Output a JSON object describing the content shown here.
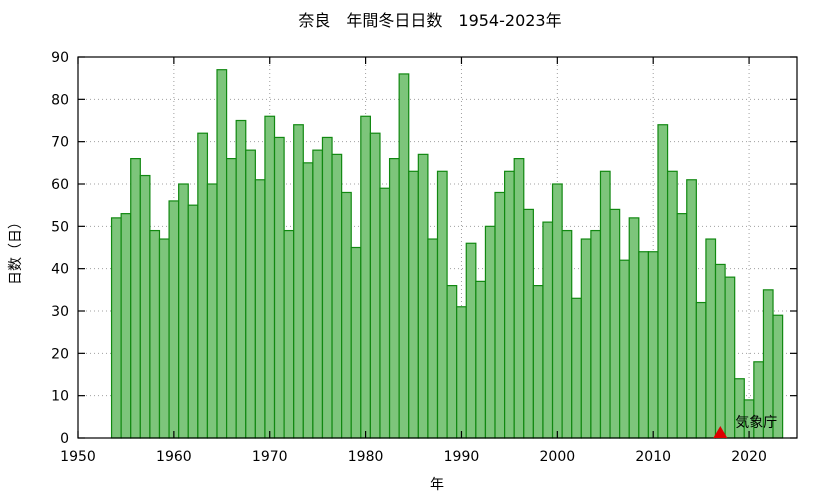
{
  "chart_data": {
    "type": "bar",
    "title": "奈良　年間冬日日数　1954-2023年",
    "xlabel": "年",
    "ylabel": "日数（日）",
    "xlim": [
      1950,
      2025
    ],
    "ylim": [
      0,
      90
    ],
    "xticks": [
      1950,
      1960,
      1970,
      1980,
      1990,
      2000,
      2010,
      2020
    ],
    "yticks": [
      0,
      10,
      20,
      30,
      40,
      50,
      60,
      70,
      80,
      90
    ],
    "grid": true,
    "x": [
      1954,
      1955,
      1956,
      1957,
      1958,
      1959,
      1960,
      1961,
      1962,
      1963,
      1964,
      1965,
      1966,
      1967,
      1968,
      1969,
      1970,
      1971,
      1972,
      1973,
      1974,
      1975,
      1976,
      1977,
      1978,
      1979,
      1980,
      1981,
      1982,
      1983,
      1984,
      1985,
      1986,
      1987,
      1988,
      1989,
      1990,
      1991,
      1992,
      1993,
      1994,
      1995,
      1996,
      1997,
      1998,
      1999,
      2000,
      2001,
      2002,
      2003,
      2004,
      2005,
      2006,
      2007,
      2008,
      2009,
      2010,
      2011,
      2012,
      2013,
      2014,
      2015,
      2016,
      2017,
      2018,
      2019,
      2020,
      2021,
      2022,
      2023
    ],
    "values": [
      52,
      53,
      66,
      62,
      49,
      47,
      56,
      60,
      55,
      72,
      60,
      87,
      66,
      75,
      68,
      61,
      76,
      71,
      49,
      74,
      65,
      68,
      71,
      67,
      58,
      45,
      76,
      72,
      59,
      66,
      86,
      63,
      67,
      47,
      63,
      36,
      31,
      46,
      37,
      50,
      58,
      63,
      66,
      54,
      36,
      51,
      60,
      49,
      33,
      47,
      49,
      63,
      54,
      42,
      52,
      44,
      44,
      74,
      63,
      53,
      61,
      32,
      47,
      41,
      38,
      14,
      9,
      18,
      35,
      29
    ],
    "annotation": {
      "label": "気象庁",
      "marker": "triangle",
      "x": 2017,
      "y": 0,
      "color": "#dd0000"
    },
    "colors": {
      "bar_fill": "#7dc57b",
      "bar_edge": "#118811"
    }
  }
}
